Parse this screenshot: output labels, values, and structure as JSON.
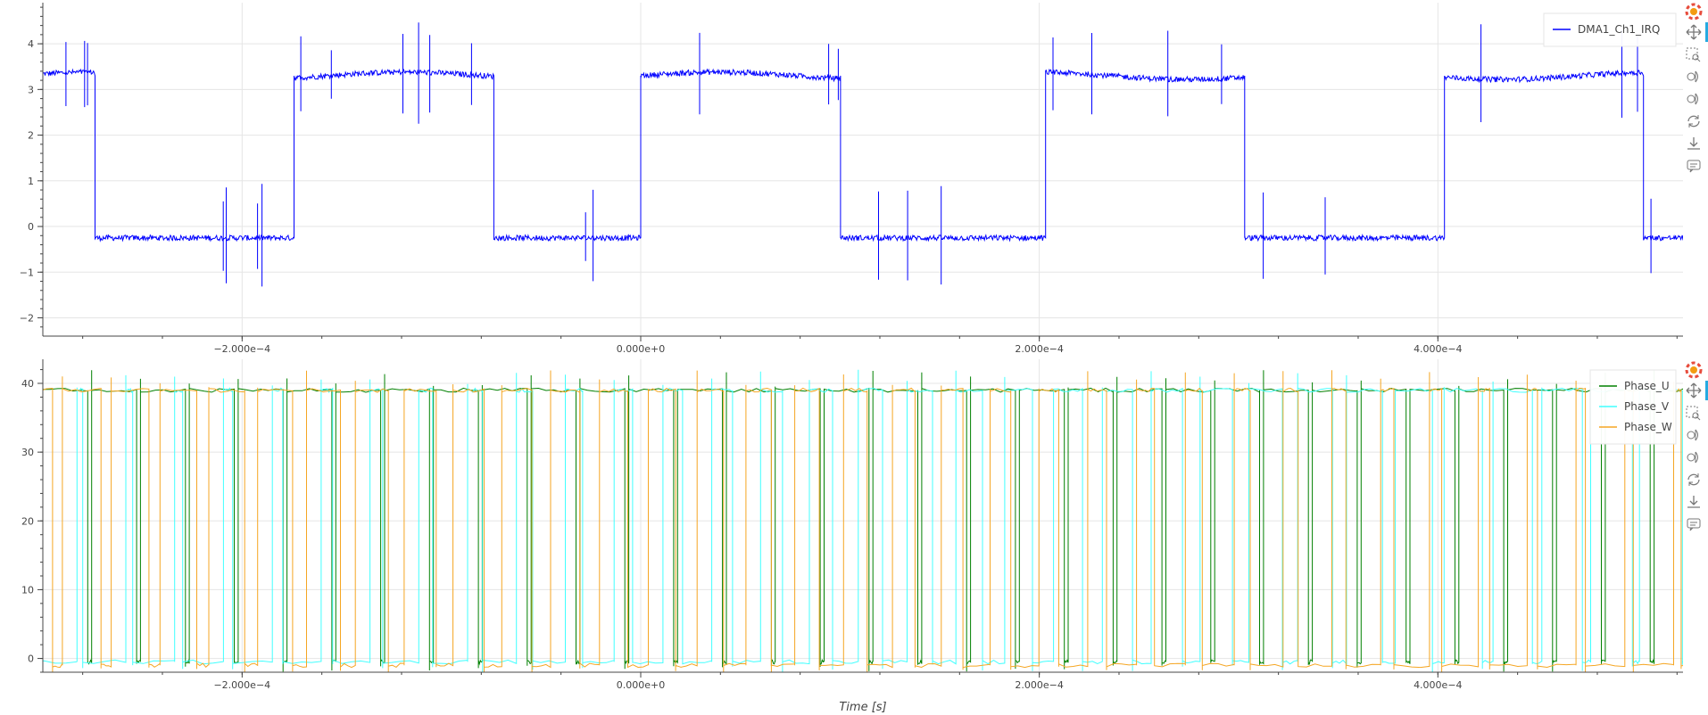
{
  "colors": {
    "irq": "#0000ff",
    "phase_u": "#008000",
    "phase_v": "#40ffff",
    "phase_w": "#f5a623",
    "grid": "#e5e5e5",
    "axis": "#444444",
    "active_tool": "#26aae1"
  },
  "toolbar": {
    "tools": [
      "bokeh-logo-icon",
      "pan-icon",
      "box-zoom-icon",
      "wheel-zoom-icon",
      "wheel-zoom-y-icon",
      "reset-icon",
      "save-icon",
      "hover-icon"
    ]
  },
  "chart_data": [
    {
      "type": "line",
      "title": "",
      "xlabel": "",
      "ylabel": "",
      "xlim": [
        -0.0003,
        0.000523
      ],
      "ylim": [
        -2.4,
        4.9
      ],
      "x_ticks": [
        -0.0002,
        0.0,
        0.0002,
        0.0004
      ],
      "x_tick_labels": [
        "−2.000e−4",
        "0.000e+0",
        "2.000e−4",
        "4.000e−4"
      ],
      "y_ticks": [
        -2,
        -1,
        0,
        1,
        2,
        3,
        4
      ],
      "y_tick_labels": [
        "−2",
        "−1",
        "0",
        "1",
        "2",
        "3",
        "4"
      ],
      "grid": true,
      "legend": "top-right",
      "series": [
        {
          "name": "DMA1_Ch1_IRQ",
          "color_key": "irq",
          "kind": "square",
          "high": 3.3,
          "low": -0.25,
          "transitions": [
            {
              "x": -0.000274,
              "to": -0.25
            },
            {
              "x": -0.000174,
              "to": 3.3
            },
            {
              "x": -7.4e-05,
              "to": -0.25
            },
            {
              "x": 0.0,
              "to": 3.3
            },
            {
              "x": 0.0001,
              "to": -0.25
            },
            {
              "x": 0.000203,
              "to": 3.3
            },
            {
              "x": 0.000303,
              "to": -0.25
            },
            {
              "x": 0.000403,
              "to": 3.3
            },
            {
              "x": 0.000503,
              "to": -0.25
            }
          ],
          "start_level": 3.3,
          "spike_amplitude": 1.1
        }
      ]
    },
    {
      "type": "line",
      "title": "",
      "xlabel": "Time [s]",
      "ylabel": "",
      "xlim": [
        -0.0003,
        0.000523
      ],
      "ylim": [
        -2,
        43.5
      ],
      "x_ticks": [
        -0.0002,
        0.0,
        0.0002,
        0.0004
      ],
      "x_tick_labels": [
        "−2.000e−4",
        "0.000e+0",
        "2.000e−4",
        "4.000e−4"
      ],
      "y_ticks": [
        0,
        10,
        20,
        30,
        40
      ],
      "y_tick_labels": [
        "0",
        "10",
        "20",
        "30",
        "40"
      ],
      "grid": true,
      "legend": "top-right",
      "series": [
        {
          "name": "Phase_U",
          "color_key": "phase_u",
          "kind": "pwm",
          "high": 39,
          "low": -0.5,
          "period": 2.45e-05,
          "duty_start": 0.92,
          "duty_end": 0.92,
          "phase": 0.0
        },
        {
          "name": "Phase_V",
          "color_key": "phase_v",
          "kind": "pwm",
          "high": 39,
          "low": -0.5,
          "period": 2.45e-05,
          "duty_start": 0.1,
          "duty_end": 0.9,
          "phase": 0.3
        },
        {
          "name": "Phase_W",
          "color_key": "phase_w",
          "kind": "pwm",
          "high": 39,
          "low": -1.0,
          "period": 2.45e-05,
          "duty_start": 0.8,
          "duty_end": 0.15,
          "phase": 0.6
        }
      ]
    }
  ]
}
